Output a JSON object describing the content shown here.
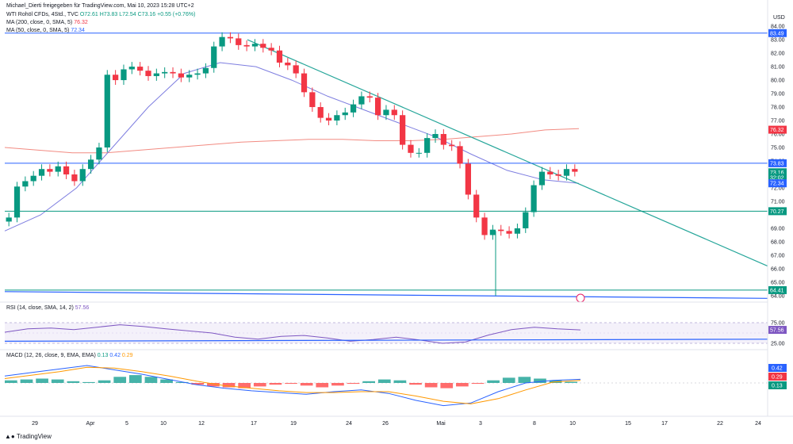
{
  "header": {
    "published": "Michael_Dierti freigegeben für TradingView.com, Mai 10, 2023 15:28 UTC+2",
    "symbol": "WTI Rohöl CFDs, 4Std., TVC",
    "ohlc": "O72.61 H73.83 L72.54 C73.16 +0.55 (+0.76%)",
    "ma200": "MA (200, close, 0, SMA, 5)",
    "ma200_val": "76.32",
    "ma50": "MA (50, close, 0, SMA, 5)",
    "ma50_val": "72.34",
    "rsi": "RSI (14, close, SMA, 14, 2)",
    "rsi_val": "57.56",
    "macd": "MACD (12, 26, close, 9, EMA, EMA)",
    "macd_vals": [
      "0.13",
      "0.42",
      "0.29"
    ]
  },
  "currency": "USD",
  "brand": "TradingView",
  "colors": {
    "up": "#089981",
    "down": "#f23645",
    "ma200": "#f28b82",
    "ma50": "#7e7ee0",
    "trend": "#26a69a",
    "level_blue": "#2962ff",
    "level_green": "#089981",
    "rsi": "#7e57c2",
    "macd": "#2962ff",
    "signal": "#ff9800"
  },
  "chart_data": [
    {
      "type": "candlestick",
      "title": "WTI Rohöl CFDs, 4Std., TVC",
      "ylim": [
        63.7,
        84.3
      ],
      "y_ticks": [
        84,
        83,
        82,
        81,
        80,
        79,
        78,
        77,
        76,
        75,
        74,
        72,
        71,
        69,
        68,
        67,
        66,
        65,
        64
      ],
      "x_ticks": [
        "29",
        "Apr",
        "5",
        "10",
        "12",
        "17",
        "19",
        "24",
        "26",
        "Mai",
        "3",
        "8",
        "10",
        "15",
        "17",
        "22",
        "24"
      ],
      "close": [
        69.8,
        72.1,
        72.5,
        72.9,
        73.4,
        73.2,
        73.6,
        73.0,
        72.5,
        73.4,
        74.1,
        75.0,
        80.4,
        80.0,
        80.8,
        81.0,
        80.7,
        80.3,
        80.5,
        80.6,
        80.5,
        80.2,
        80.4,
        80.5,
        80.9,
        82.5,
        83.2,
        83.1,
        82.6,
        82.5,
        82.7,
        82.4,
        82.2,
        81.3,
        81.1,
        80.5,
        79.1,
        78.0,
        77.2,
        77.0,
        77.4,
        77.6,
        78.2,
        78.8,
        78.7,
        77.4,
        77.8,
        77.4,
        75.2,
        74.6,
        74.6,
        75.7,
        76.0,
        75.2,
        75.1,
        73.8,
        71.5,
        69.8,
        68.5,
        68.9,
        68.8,
        68.6,
        69.0,
        70.2,
        72.2,
        73.2,
        73.0,
        72.9,
        73.4,
        73.2
      ],
      "horizontal_levels": [
        {
          "label": "83.49",
          "value": 83.49,
          "color": "#2962ff"
        },
        {
          "label": "73.83",
          "value": 73.83,
          "color": "#2962ff"
        },
        {
          "label": "70.27",
          "value": 70.27,
          "color": "#089981"
        },
        {
          "label": "64.41",
          "value": 64.41,
          "color": "#089981"
        }
      ],
      "price_tags": [
        {
          "label": "76.32",
          "value": 76.32,
          "color": "#f23645"
        },
        {
          "label": "73.16",
          "value": 73.16,
          "color": "#089981"
        },
        {
          "label": "32:02",
          "value": 72.75,
          "color": "#089981"
        },
        {
          "label": "72.34",
          "value": 72.34,
          "color": "#2962ff"
        }
      ],
      "series": [
        {
          "name": "MA (200, close, 0, SMA, 5)",
          "values": [
            75.0,
            74.8,
            74.6,
            74.6,
            74.8,
            75.0,
            75.2,
            75.4,
            75.5,
            75.6,
            75.6,
            75.5,
            75.5,
            75.6,
            75.8,
            76.0,
            76.3,
            76.4
          ]
        },
        {
          "name": "MA (50, close, 0, SMA, 5)",
          "values": [
            68.8,
            70.0,
            72.0,
            75.0,
            78.0,
            80.5,
            81.3,
            81.0,
            80.0,
            78.8,
            77.8,
            76.8,
            75.8,
            74.5,
            73.3,
            72.6,
            72.34
          ]
        }
      ]
    },
    {
      "type": "line",
      "title": "RSI (14, close, SMA, 14, 2)",
      "ylim": [
        20,
        80
      ],
      "y_ticks": [
        75.0,
        25.0
      ],
      "series": [
        {
          "name": "RSI",
          "values": [
            52,
            60,
            62,
            58,
            64,
            70,
            66,
            60,
            55,
            50,
            40,
            35,
            42,
            44,
            38,
            30,
            34,
            40,
            33,
            25,
            28,
            45,
            58,
            64,
            60,
            57.56
          ]
        }
      ]
    },
    {
      "type": "bar",
      "title": "MACD (12, 26, close, 9, EMA, EMA)",
      "values": [
        0.3,
        0.4,
        0.5,
        0.4,
        0.2,
        0.1,
        0.3,
        0.7,
        0.9,
        0.7,
        0.4,
        0.1,
        -0.2,
        -0.4,
        -0.5,
        -0.6,
        -0.4,
        -0.2,
        -0.1,
        -0.3,
        -0.5,
        -0.3,
        -0.1,
        0.2,
        0.4,
        0.3,
        -0.2,
        -0.5,
        -0.6,
        -0.4,
        -0.1,
        0.3,
        0.6,
        0.7,
        0.5,
        0.3,
        0.13
      ],
      "series": [
        {
          "name": "MACD",
          "values": [
            0.8,
            1.2,
            1.6,
            2.0,
            1.5,
            1.0,
            0.4,
            -0.2,
            -0.6,
            -0.9,
            -1.1,
            -1.3,
            -1.0,
            -0.8,
            -1.2,
            -2.0,
            -2.6,
            -2.3,
            -1.0,
            0.0,
            0.3,
            0.42
          ]
        },
        {
          "name": "Signal",
          "values": [
            0.5,
            0.9,
            1.3,
            1.8,
            1.7,
            1.3,
            0.8,
            0.2,
            -0.3,
            -0.6,
            -0.9,
            -1.1,
            -1.1,
            -1.0,
            -1.0,
            -1.5,
            -2.1,
            -2.4,
            -1.8,
            -0.8,
            0.1,
            0.29
          ]
        }
      ]
    }
  ]
}
